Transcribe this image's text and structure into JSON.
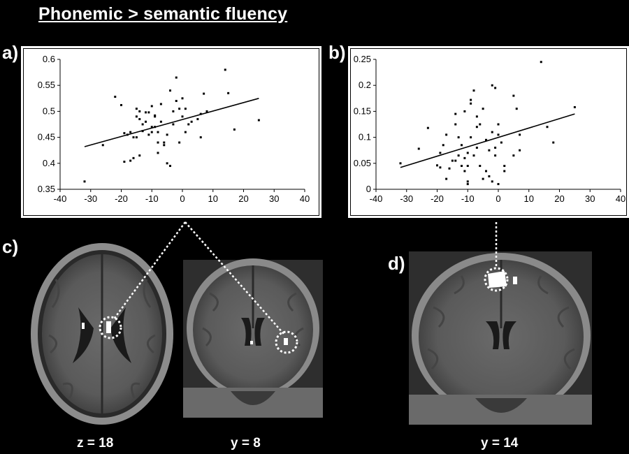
{
  "figure": {
    "title": "Phonemic > semantic fluency",
    "panel_labels": {
      "a": "a)",
      "b": "b)",
      "c": "c)",
      "d": "d)"
    },
    "slice_labels": [
      "z = 18",
      "y = 8",
      "y = 14"
    ],
    "background": "#000000"
  },
  "chart_data": [
    {
      "type": "scatter",
      "title": "",
      "xlabel": "",
      "ylabel": "",
      "xlim": [
        -40,
        40
      ],
      "ylim": [
        0.35,
        0.6
      ],
      "xticks": [
        "-40",
        "-30",
        "-20",
        "-10",
        "0",
        "10",
        "20",
        "30",
        "40"
      ],
      "yticks": [
        "0.35",
        "0.4",
        "0.45",
        "0.5",
        "0.55",
        "0.6"
      ],
      "trendline": {
        "x": [
          -32,
          25
        ],
        "y": [
          0.432,
          0.525
        ]
      },
      "points": [
        [
          -32,
          0.365
        ],
        [
          -26,
          0.435
        ],
        [
          -22,
          0.528
        ],
        [
          -20,
          0.512
        ],
        [
          -19,
          0.458
        ],
        [
          -19,
          0.403
        ],
        [
          -18,
          0.455
        ],
        [
          -17,
          0.46
        ],
        [
          -17,
          0.405
        ],
        [
          -16,
          0.45
        ],
        [
          -16,
          0.41
        ],
        [
          -15,
          0.505
        ],
        [
          -15,
          0.49
        ],
        [
          -15,
          0.45
        ],
        [
          -14,
          0.415
        ],
        [
          -14,
          0.485
        ],
        [
          -14,
          0.5
        ],
        [
          -13,
          0.475
        ],
        [
          -13,
          0.462
        ],
        [
          -12,
          0.498
        ],
        [
          -12,
          0.48
        ],
        [
          -11,
          0.498
        ],
        [
          -11,
          0.455
        ],
        [
          -10,
          0.51
        ],
        [
          -10,
          0.47
        ],
        [
          -10,
          0.46
        ],
        [
          -9,
          0.492
        ],
        [
          -9,
          0.49
        ],
        [
          -9,
          0.47
        ],
        [
          -8,
          0.44
        ],
        [
          -8,
          0.42
        ],
        [
          -8,
          0.46
        ],
        [
          -7,
          0.514
        ],
        [
          -7,
          0.48
        ],
        [
          -6,
          0.44
        ],
        [
          -6,
          0.435
        ],
        [
          -5,
          0.455
        ],
        [
          -5,
          0.4
        ],
        [
          -4,
          0.395
        ],
        [
          -4,
          0.54
        ],
        [
          -3,
          0.475
        ],
        [
          -3,
          0.5
        ],
        [
          -2,
          0.565
        ],
        [
          -2,
          0.52
        ],
        [
          -1,
          0.505
        ],
        [
          -1,
          0.44
        ],
        [
          0,
          0.525
        ],
        [
          0,
          0.49
        ],
        [
          1,
          0.505
        ],
        [
          1,
          0.46
        ],
        [
          2,
          0.475
        ],
        [
          3,
          0.48
        ],
        [
          5,
          0.485
        ],
        [
          6,
          0.495
        ],
        [
          6,
          0.45
        ],
        [
          7,
          0.534
        ],
        [
          8,
          0.5
        ],
        [
          14,
          0.58
        ],
        [
          15,
          0.535
        ],
        [
          17,
          0.465
        ],
        [
          25,
          0.483
        ]
      ]
    },
    {
      "type": "scatter",
      "title": "",
      "xlabel": "",
      "ylabel": "",
      "xlim": [
        -40,
        40
      ],
      "ylim": [
        0,
        0.25
      ],
      "xticks": [
        "-40",
        "-30",
        "-20",
        "-10",
        "0",
        "10",
        "20",
        "30",
        "40"
      ],
      "yticks": [
        "0",
        "0.05",
        "0.1",
        "0.15",
        "0.2",
        "0.25"
      ],
      "trendline": {
        "x": [
          -32,
          25
        ],
        "y": [
          0.042,
          0.145
        ]
      },
      "points": [
        [
          -32,
          0.05
        ],
        [
          -26,
          0.078
        ],
        [
          -23,
          0.118
        ],
        [
          -20,
          0.046
        ],
        [
          -19,
          0.042
        ],
        [
          -19,
          0.07
        ],
        [
          -18,
          0.085
        ],
        [
          -17,
          0.105
        ],
        [
          -17,
          0.02
        ],
        [
          -16,
          0.04
        ],
        [
          -15,
          0.055
        ],
        [
          -14,
          0.145
        ],
        [
          -14,
          0.125
        ],
        [
          -14,
          0.055
        ],
        [
          -13,
          0.065
        ],
        [
          -13,
          0.1
        ],
        [
          -12,
          0.085
        ],
        [
          -12,
          0.045
        ],
        [
          -11,
          0.15
        ],
        [
          -11,
          0.06
        ],
        [
          -11,
          0.035
        ],
        [
          -10,
          0.01
        ],
        [
          -10,
          0.015
        ],
        [
          -10,
          0.045
        ],
        [
          -10,
          0.07
        ],
        [
          -9,
          0.172
        ],
        [
          -9,
          0.1
        ],
        [
          -9,
          0.165
        ],
        [
          -8,
          0.19
        ],
        [
          -8,
          0.065
        ],
        [
          -7,
          0.14
        ],
        [
          -7,
          0.12
        ],
        [
          -7,
          0.08
        ],
        [
          -6,
          0.125
        ],
        [
          -6,
          0.045
        ],
        [
          -5,
          0.155
        ],
        [
          -5,
          0.02
        ],
        [
          -4,
          0.095
        ],
        [
          -4,
          0.035
        ],
        [
          -3,
          0.075
        ],
        [
          -3,
          0.025
        ],
        [
          -2,
          0.2
        ],
        [
          -2,
          0.11
        ],
        [
          -2,
          0.015
        ],
        [
          -1,
          0.195
        ],
        [
          -1,
          0.08
        ],
        [
          -1,
          0.065
        ],
        [
          0,
          0.105
        ],
        [
          0,
          0.125
        ],
        [
          0,
          0.01
        ],
        [
          1,
          0.09
        ],
        [
          2,
          0.045
        ],
        [
          2,
          0.035
        ],
        [
          5,
          0.18
        ],
        [
          5,
          0.065
        ],
        [
          6,
          0.155
        ],
        [
          7,
          0.105
        ],
        [
          7,
          0.075
        ],
        [
          14,
          0.245
        ],
        [
          16,
          0.12
        ],
        [
          18,
          0.09
        ],
        [
          25,
          0.158
        ]
      ]
    }
  ]
}
